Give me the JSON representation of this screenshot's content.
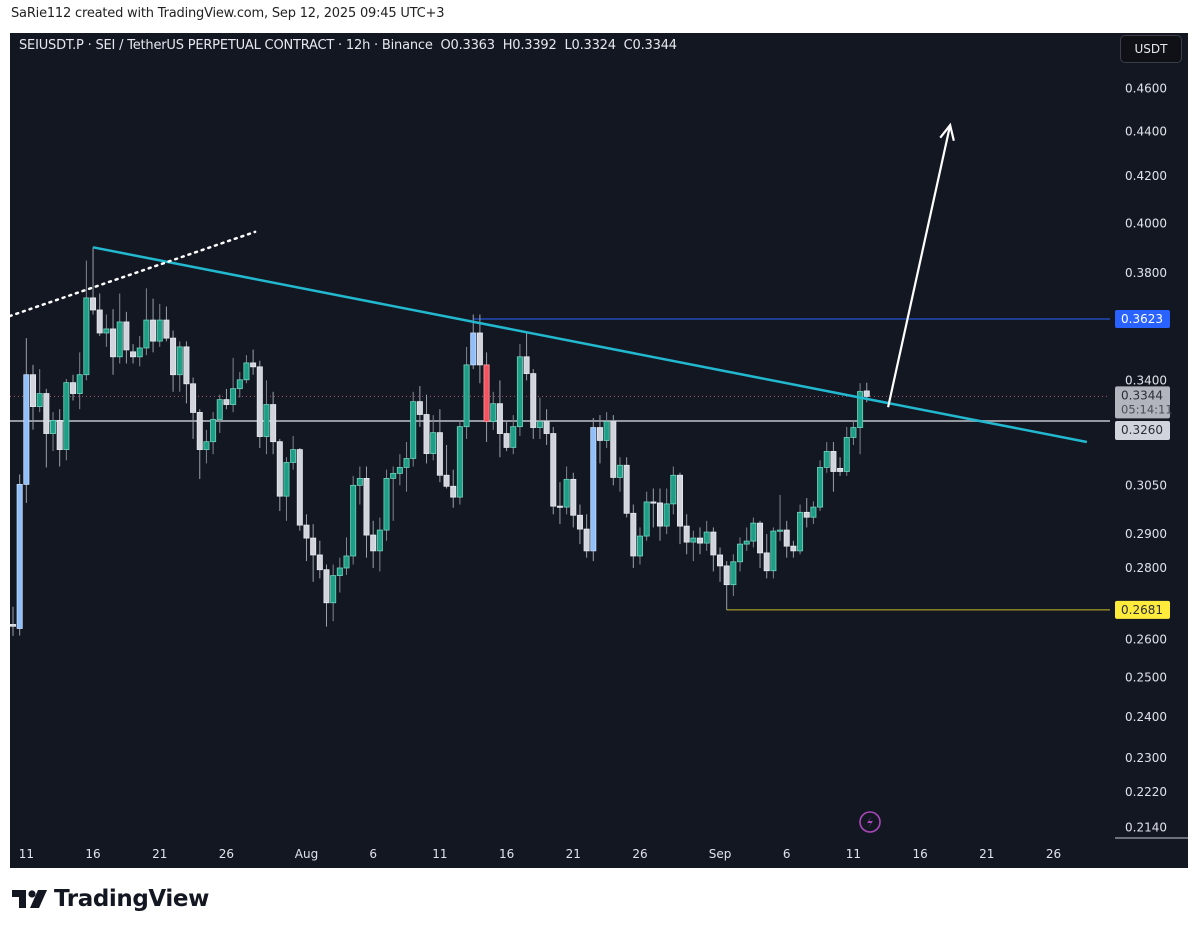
{
  "attribution": "SaRie112 created with TradingView.com, Sep 12, 2025 09:45 UTC+3",
  "legend": {
    "symbol": "SEIUSDT.P · SEI / TetherUS PERPETUAL CONTRACT · 12h · Binance",
    "open": "O0.3363",
    "high": "H0.3392",
    "low": "L0.3324",
    "close": "C0.3344"
  },
  "currency_button": "USDT",
  "logo_text": "TradingView",
  "colors": {
    "background": "#131722",
    "up": "#1e9e86",
    "down": "#d1d4dc",
    "highlight_blue": "#90bff9",
    "highlight_red": "#f7525f",
    "trendline": "#22b8cf",
    "resistance": "#2962ff",
    "support": "#ffeb3b",
    "level": "#9598a1",
    "arrow": "#ffffff"
  },
  "chart_data": {
    "type": "candlestick",
    "title": "SEIUSDT.P · SEI / TetherUS PERPETUAL CONTRACT · 12h · Binance",
    "interval": "12h",
    "scale": "log",
    "ylim": [
      0.21,
      0.475
    ],
    "candle_fields": [
      "open",
      "high",
      "low",
      "close"
    ],
    "candles": [
      [
        0.2641,
        0.269,
        0.261,
        0.2636
      ],
      [
        0.263,
        0.3085,
        0.2611,
        0.3053
      ],
      [
        0.3053,
        0.3552,
        0.2995,
        0.342
      ],
      [
        0.342,
        0.3455,
        0.3231,
        0.3309
      ],
      [
        0.3309,
        0.344,
        0.329,
        0.3354
      ],
      [
        0.3354,
        0.337,
        0.3107,
        0.3218
      ],
      [
        0.3218,
        0.329,
        0.316,
        0.3262
      ],
      [
        0.3262,
        0.33,
        0.311,
        0.3165
      ],
      [
        0.3165,
        0.3405,
        0.313,
        0.3392
      ],
      [
        0.3392,
        0.342,
        0.333,
        0.3354
      ],
      [
        0.3354,
        0.35,
        0.33,
        0.342
      ],
      [
        0.342,
        0.3849,
        0.34,
        0.3703
      ],
      [
        0.3703,
        0.3902,
        0.364,
        0.3657
      ],
      [
        0.3657,
        0.372,
        0.356,
        0.3571
      ],
      [
        0.3571,
        0.364,
        0.352,
        0.3586
      ],
      [
        0.3586,
        0.366,
        0.342,
        0.3484
      ],
      [
        0.3484,
        0.372,
        0.346,
        0.3612
      ],
      [
        0.3612,
        0.365,
        0.346,
        0.3509
      ],
      [
        0.3502,
        0.353,
        0.346,
        0.3484
      ],
      [
        0.3484,
        0.356,
        0.345,
        0.3516
      ],
      [
        0.3516,
        0.374,
        0.349,
        0.3619
      ],
      [
        0.3619,
        0.37,
        0.35,
        0.3541
      ],
      [
        0.3541,
        0.368,
        0.352,
        0.3619
      ],
      [
        0.3619,
        0.367,
        0.354,
        0.3552
      ],
      [
        0.3552,
        0.358,
        0.336,
        0.342
      ],
      [
        0.342,
        0.354,
        0.336,
        0.352
      ],
      [
        0.352,
        0.354,
        0.332,
        0.3388
      ],
      [
        0.3388,
        0.341,
        0.32,
        0.3289
      ],
      [
        0.3289,
        0.33,
        0.307,
        0.3165
      ],
      [
        0.3165,
        0.323,
        0.312,
        0.3191
      ],
      [
        0.3191,
        0.329,
        0.315,
        0.3265
      ],
      [
        0.3265,
        0.335,
        0.322,
        0.3333
      ],
      [
        0.3333,
        0.337,
        0.33,
        0.3316
      ],
      [
        0.3316,
        0.348,
        0.329,
        0.3371
      ],
      [
        0.3371,
        0.343,
        0.334,
        0.3402
      ],
      [
        0.3402,
        0.349,
        0.339,
        0.3462
      ],
      [
        0.3462,
        0.351,
        0.342,
        0.3448
      ],
      [
        0.3448,
        0.347,
        0.317,
        0.3208
      ],
      [
        0.3208,
        0.34,
        0.315,
        0.3316
      ],
      [
        0.3316,
        0.336,
        0.315,
        0.3191
      ],
      [
        0.3191,
        0.32,
        0.297,
        0.3016
      ],
      [
        0.3016,
        0.314,
        0.294,
        0.3123
      ],
      [
        0.3123,
        0.321,
        0.31,
        0.3165
      ],
      [
        0.3165,
        0.317,
        0.291,
        0.2927
      ],
      [
        0.2927,
        0.296,
        0.282,
        0.2888
      ],
      [
        0.2888,
        0.293,
        0.276,
        0.2838
      ],
      [
        0.2838,
        0.288,
        0.277,
        0.2795
      ],
      [
        0.2795,
        0.281,
        0.2635,
        0.2701
      ],
      [
        0.2701,
        0.281,
        0.265,
        0.2778
      ],
      [
        0.2778,
        0.283,
        0.273,
        0.28
      ],
      [
        0.28,
        0.289,
        0.278,
        0.2835
      ],
      [
        0.2835,
        0.308,
        0.281,
        0.305
      ],
      [
        0.305,
        0.311,
        0.299,
        0.3072
      ],
      [
        0.3072,
        0.311,
        0.283,
        0.2897
      ],
      [
        0.2897,
        0.294,
        0.28,
        0.285
      ],
      [
        0.285,
        0.295,
        0.279,
        0.2912
      ],
      [
        0.2912,
        0.31,
        0.288,
        0.3072
      ],
      [
        0.3072,
        0.311,
        0.294,
        0.3088
      ],
      [
        0.3088,
        0.315,
        0.305,
        0.3107
      ],
      [
        0.3107,
        0.319,
        0.303,
        0.3136
      ],
      [
        0.3136,
        0.336,
        0.311,
        0.3326
      ],
      [
        0.3326,
        0.338,
        0.324,
        0.3282
      ],
      [
        0.3282,
        0.335,
        0.312,
        0.3152
      ],
      [
        0.3152,
        0.328,
        0.313,
        0.3221
      ],
      [
        0.3221,
        0.33,
        0.306,
        0.3082
      ],
      [
        0.3082,
        0.318,
        0.304,
        0.3047
      ],
      [
        0.3047,
        0.31,
        0.298,
        0.3013
      ],
      [
        0.3013,
        0.326,
        0.299,
        0.3241
      ],
      [
        0.3241,
        0.352,
        0.32,
        0.3455
      ],
      [
        0.3455,
        0.364,
        0.344,
        0.3571
      ],
      [
        0.3571,
        0.364,
        0.339,
        0.3455
      ],
      [
        0.3455,
        0.35,
        0.319,
        0.3258
      ],
      [
        0.3258,
        0.336,
        0.323,
        0.3319
      ],
      [
        0.3319,
        0.34,
        0.314,
        0.3218
      ],
      [
        0.3218,
        0.326,
        0.316,
        0.3172
      ],
      [
        0.3172,
        0.328,
        0.315,
        0.3241
      ],
      [
        0.3241,
        0.353,
        0.321,
        0.3484
      ],
      [
        0.3484,
        0.357,
        0.34,
        0.3424
      ],
      [
        0.3424,
        0.344,
        0.32,
        0.3238
      ],
      [
        0.3238,
        0.334,
        0.32,
        0.3258
      ],
      [
        0.3258,
        0.33,
        0.318,
        0.3218
      ],
      [
        0.3218,
        0.324,
        0.296,
        0.2985
      ],
      [
        0.2985,
        0.306,
        0.293,
        0.2982
      ],
      [
        0.2982,
        0.311,
        0.296,
        0.3069
      ],
      [
        0.3069,
        0.309,
        0.292,
        0.2957
      ],
      [
        0.2957,
        0.299,
        0.287,
        0.2915
      ],
      [
        0.2915,
        0.296,
        0.283,
        0.285
      ],
      [
        0.285,
        0.327,
        0.282,
        0.3238
      ],
      [
        0.3238,
        0.328,
        0.312,
        0.3195
      ],
      [
        0.3195,
        0.329,
        0.317,
        0.3258
      ],
      [
        0.3258,
        0.328,
        0.305,
        0.3075
      ],
      [
        0.3075,
        0.314,
        0.303,
        0.3114
      ],
      [
        0.3114,
        0.314,
        0.295,
        0.2963
      ],
      [
        0.2963,
        0.299,
        0.28,
        0.2835
      ],
      [
        0.2835,
        0.292,
        0.281,
        0.2894
      ],
      [
        0.2894,
        0.303,
        0.288,
        0.2998
      ],
      [
        0.2998,
        0.304,
        0.292,
        0.2995
      ],
      [
        0.2995,
        0.304,
        0.288,
        0.2924
      ],
      [
        0.2924,
        0.304,
        0.29,
        0.2992
      ],
      [
        0.2992,
        0.311,
        0.296,
        0.3082
      ],
      [
        0.3082,
        0.309,
        0.287,
        0.2924
      ],
      [
        0.2924,
        0.296,
        0.284,
        0.2876
      ],
      [
        0.2876,
        0.291,
        0.282,
        0.2888
      ],
      [
        0.2888,
        0.292,
        0.284,
        0.2873
      ],
      [
        0.2873,
        0.294,
        0.285,
        0.2906
      ],
      [
        0.2906,
        0.292,
        0.279,
        0.2838
      ],
      [
        0.2838,
        0.286,
        0.276,
        0.2806
      ],
      [
        0.2806,
        0.282,
        0.2681,
        0.2752
      ],
      [
        0.2752,
        0.284,
        0.272,
        0.2818
      ],
      [
        0.2818,
        0.289,
        0.279,
        0.287
      ],
      [
        0.287,
        0.292,
        0.285,
        0.2879
      ],
      [
        0.2879,
        0.295,
        0.286,
        0.2933
      ],
      [
        0.2933,
        0.294,
        0.28,
        0.2844
      ],
      [
        0.2844,
        0.29,
        0.277,
        0.2792
      ],
      [
        0.2792,
        0.292,
        0.277,
        0.2909
      ],
      [
        0.2909,
        0.302,
        0.288,
        0.2912
      ],
      [
        0.2912,
        0.294,
        0.283,
        0.2864
      ],
      [
        0.2864,
        0.288,
        0.283,
        0.285
      ],
      [
        0.285,
        0.299,
        0.284,
        0.2966
      ],
      [
        0.2966,
        0.301,
        0.292,
        0.2951
      ],
      [
        0.2951,
        0.3,
        0.293,
        0.2982
      ],
      [
        0.2982,
        0.313,
        0.297,
        0.3107
      ],
      [
        0.3107,
        0.319,
        0.309,
        0.3159
      ],
      [
        0.3159,
        0.319,
        0.303,
        0.3094
      ],
      [
        0.3104,
        0.314,
        0.308,
        0.3094
      ],
      [
        0.3094,
        0.324,
        0.308,
        0.3205
      ],
      [
        0.3205,
        0.326,
        0.318,
        0.3238
      ],
      [
        0.3238,
        0.339,
        0.315,
        0.3361
      ],
      [
        0.3363,
        0.3392,
        0.3324,
        0.3344
      ]
    ],
    "highlighted_candles": {
      "1": "blue",
      "2": "blue",
      "69": "blue",
      "71": "red",
      "87": "blue"
    },
    "y_ticks": [
      "0.4600",
      "0.4400",
      "0.4200",
      "0.4000",
      "0.3800",
      "0.3400",
      "0.3050",
      "0.2900",
      "0.2800",
      "0.2600",
      "0.2500",
      "0.2400",
      "0.2300",
      "0.2220",
      "0.2140"
    ],
    "x_ticks": [
      {
        "label": "11",
        "index": 2
      },
      {
        "label": "16",
        "index": 12
      },
      {
        "label": "21",
        "index": 22
      },
      {
        "label": "26",
        "index": 32
      },
      {
        "label": "Aug",
        "index": 44
      },
      {
        "label": "6",
        "index": 54
      },
      {
        "label": "11",
        "index": 64
      },
      {
        "label": "16",
        "index": 74
      },
      {
        "label": "21",
        "index": 84
      },
      {
        "label": "26",
        "index": 94
      },
      {
        "label": "Sep",
        "index": 106
      },
      {
        "label": "6",
        "index": 116
      },
      {
        "label": "11",
        "index": 126
      },
      {
        "label": "16",
        "index": 136
      },
      {
        "label": "21",
        "index": 146
      },
      {
        "label": "26",
        "index": 156
      }
    ],
    "price_labels": [
      {
        "value": "0.3623",
        "price": 0.3623,
        "style": "blue"
      },
      {
        "value": "0.3344",
        "sub": "05:14:11",
        "price": 0.3344,
        "style": "current"
      },
      {
        "value": "0.3260",
        "price": 0.326,
        "style": "grey"
      },
      {
        "value": "0.2681",
        "price": 0.2681,
        "style": "yellow"
      }
    ],
    "drawings": {
      "descending_trendline": {
        "from": {
          "index": 12,
          "price": 0.3902
        },
        "to": {
          "index": 161,
          "price": 0.319
        }
      },
      "dotted_trendline": {
        "from": {
          "index": -0.5,
          "price": 0.3634
        },
        "to": {
          "index": 36.3,
          "price": 0.3965
        }
      },
      "target_arrow": {
        "from": {
          "index": 131.2,
          "price": 0.3307
        },
        "to": {
          "index": 140.5,
          "price": 0.4428
        }
      },
      "resistance_level": {
        "price": 0.3623,
        "from_index": 69
      },
      "support_level": {
        "price": 0.2681,
        "from_index": 107
      },
      "horizontal_level": {
        "price": 0.326
      },
      "current_price_line": {
        "price": 0.3344
      }
    },
    "xlabel": "",
    "ylabel": "USDT",
    "grid": false
  }
}
